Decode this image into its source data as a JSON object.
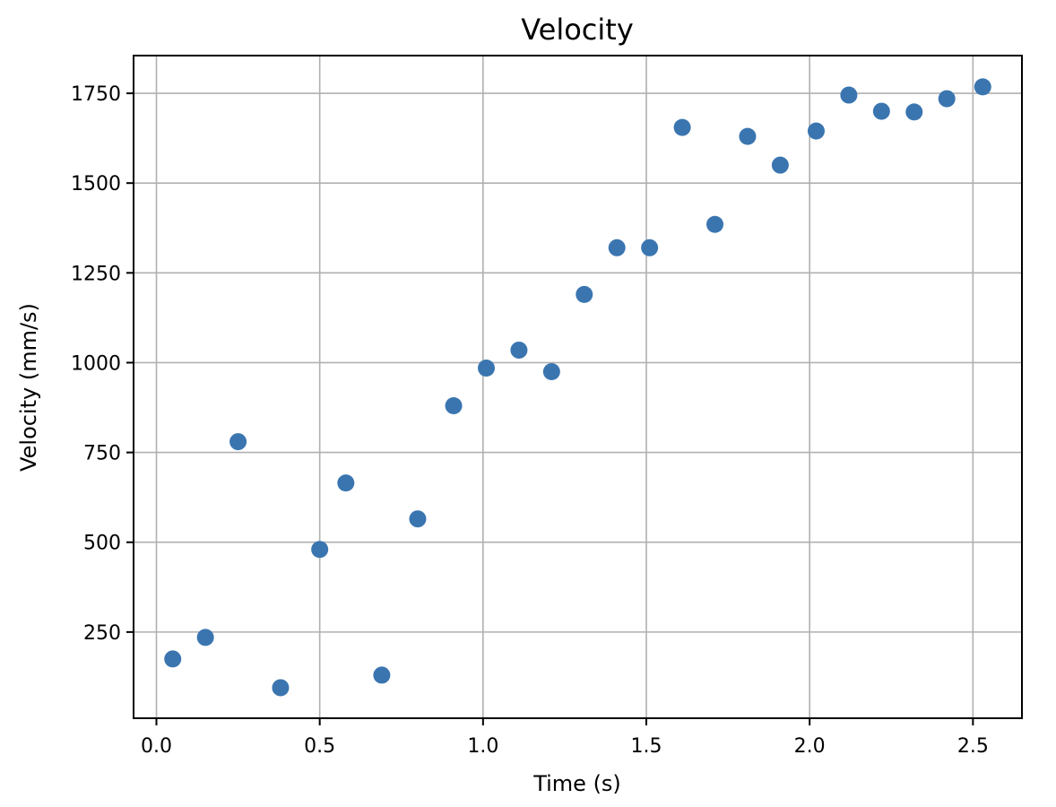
{
  "chart_data": {
    "type": "scatter",
    "title": "Velocity",
    "xlabel": "Time (s)",
    "ylabel": "Velocity (mm/s)",
    "xlim": [
      -0.07,
      2.65
    ],
    "ylim": [
      10,
      1855
    ],
    "xticks": [
      0.0,
      0.5,
      1.0,
      1.5,
      2.0,
      2.5
    ],
    "xtick_labels": [
      "0.0",
      "0.5",
      "1.0",
      "1.5",
      "2.0",
      "2.5"
    ],
    "yticks": [
      250,
      500,
      750,
      1000,
      1250,
      1500,
      1750
    ],
    "ytick_labels": [
      "250",
      "500",
      "750",
      "1000",
      "1250",
      "1500",
      "1750"
    ],
    "grid": true,
    "marker_color": "#3a75b0",
    "series": [
      {
        "x": [
          0.05,
          0.15,
          0.25,
          0.38,
          0.5,
          0.58,
          0.69,
          0.8,
          0.91,
          1.01,
          1.11,
          1.21,
          1.31,
          1.41,
          1.51,
          1.61,
          1.71,
          1.81,
          1.91,
          2.02,
          2.12,
          2.22,
          2.32,
          2.42,
          2.53
        ],
        "y": [
          175,
          235,
          780,
          95,
          480,
          665,
          130,
          565,
          880,
          985,
          1035,
          975,
          1190,
          1320,
          1320,
          1655,
          1385,
          1630,
          1550,
          1645,
          1745,
          1700,
          1698,
          1735,
          1768
        ]
      }
    ]
  }
}
